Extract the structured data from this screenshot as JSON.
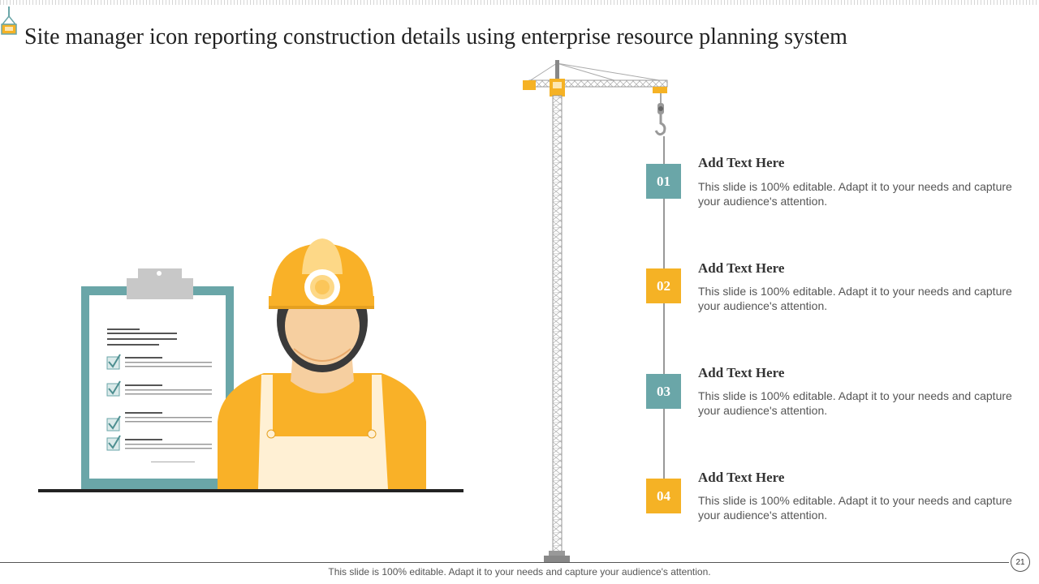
{
  "slide": {
    "title": "Site manager icon reporting construction details using enterprise resource planning system",
    "page_number": "21",
    "footer": "This slide is 100% editable. Adapt it to your needs and capture your audience's attention."
  },
  "colors": {
    "accent_teal": "#6aa6a8",
    "accent_orange": "#f5b225",
    "text_dark": "#222222",
    "text_body": "#555555"
  },
  "icons": [
    "crane-icon",
    "site-manager-icon",
    "clipboard-icon",
    "checkbox-icon"
  ],
  "steps": [
    {
      "number": "01",
      "heading": "Add Text Here",
      "body": "This slide is 100% editable. Adapt it to your needs and capture your audience's attention.",
      "color": "teal"
    },
    {
      "number": "02",
      "heading": "Add Text Here",
      "body": "This slide is 100% editable. Adapt it to your needs and capture your audience's attention.",
      "color": "orange"
    },
    {
      "number": "03",
      "heading": "Add Text Here",
      "body": "This slide is 100% editable. Adapt it to your needs and capture your audience's attention.",
      "color": "teal"
    },
    {
      "number": "04",
      "heading": "Add Text Here",
      "body": "This slide is 100% editable. Adapt it to your needs and capture your audience's attention.",
      "color": "orange"
    }
  ]
}
